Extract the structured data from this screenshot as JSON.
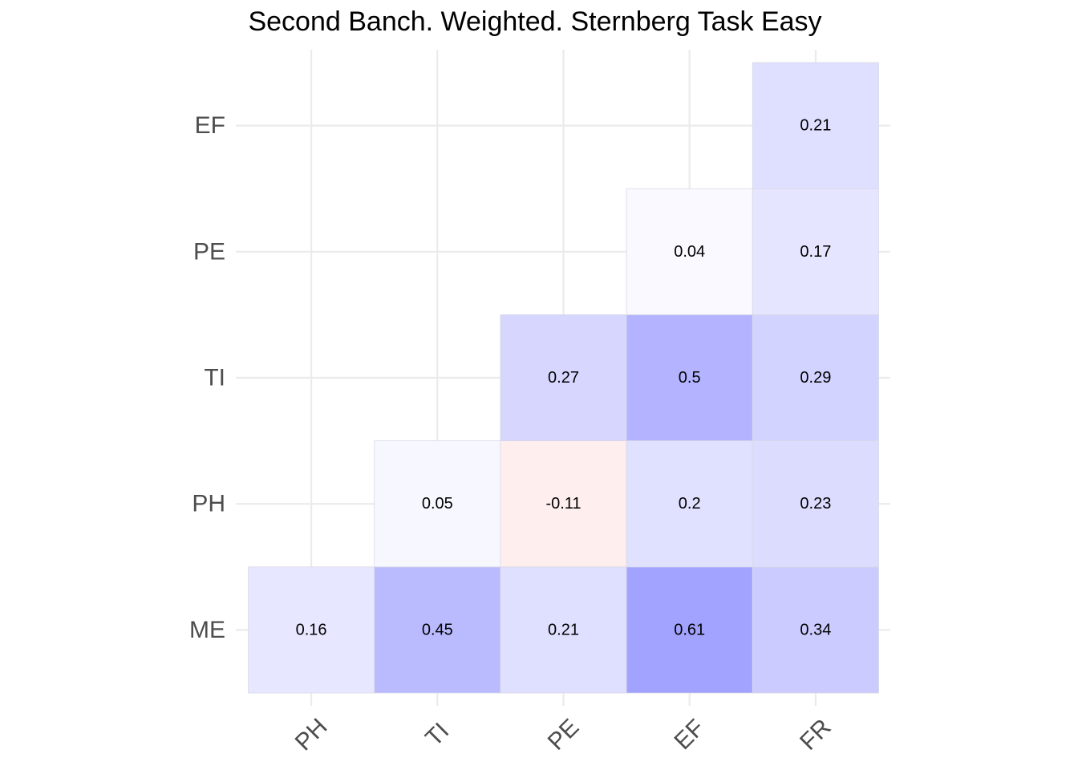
{
  "chart_data": {
    "type": "heatmap",
    "title": "Second Banch. Weighted. Sternberg Task Easy",
    "x_categories": [
      "PH",
      "TI",
      "PE",
      "EF",
      "FR"
    ],
    "y_categories": [
      "ME",
      "PH",
      "TI",
      "PE",
      "EF"
    ],
    "cells": [
      {
        "x": "PH",
        "y": "ME",
        "value": 0.16,
        "label": "0.16"
      },
      {
        "x": "TI",
        "y": "ME",
        "value": 0.45,
        "label": "0.45"
      },
      {
        "x": "PE",
        "y": "ME",
        "value": 0.21,
        "label": "0.21"
      },
      {
        "x": "EF",
        "y": "ME",
        "value": 0.61,
        "label": "0.61"
      },
      {
        "x": "FR",
        "y": "ME",
        "value": 0.34,
        "label": "0.34"
      },
      {
        "x": "TI",
        "y": "PH",
        "value": 0.05,
        "label": "0.05"
      },
      {
        "x": "PE",
        "y": "PH",
        "value": -0.11,
        "label": "-0.11"
      },
      {
        "x": "EF",
        "y": "PH",
        "value": 0.2,
        "label": "0.2"
      },
      {
        "x": "FR",
        "y": "PH",
        "value": 0.23,
        "label": "0.23"
      },
      {
        "x": "PE",
        "y": "TI",
        "value": 0.27,
        "label": "0.27"
      },
      {
        "x": "EF",
        "y": "TI",
        "value": 0.5,
        "label": "0.5"
      },
      {
        "x": "FR",
        "y": "TI",
        "value": 0.29,
        "label": "0.29"
      },
      {
        "x": "EF",
        "y": "PE",
        "value": 0.04,
        "label": "0.04"
      },
      {
        "x": "FR",
        "y": "PE",
        "value": 0.17,
        "label": "0.17"
      },
      {
        "x": "FR",
        "y": "EF",
        "value": 0.21,
        "label": "0.21"
      }
    ],
    "color_scale": {
      "negative": "#ff0000",
      "zero": "#ffffff",
      "positive": "#0000ff",
      "domain": [
        -1,
        1
      ]
    },
    "grid": true,
    "legend": "none"
  }
}
